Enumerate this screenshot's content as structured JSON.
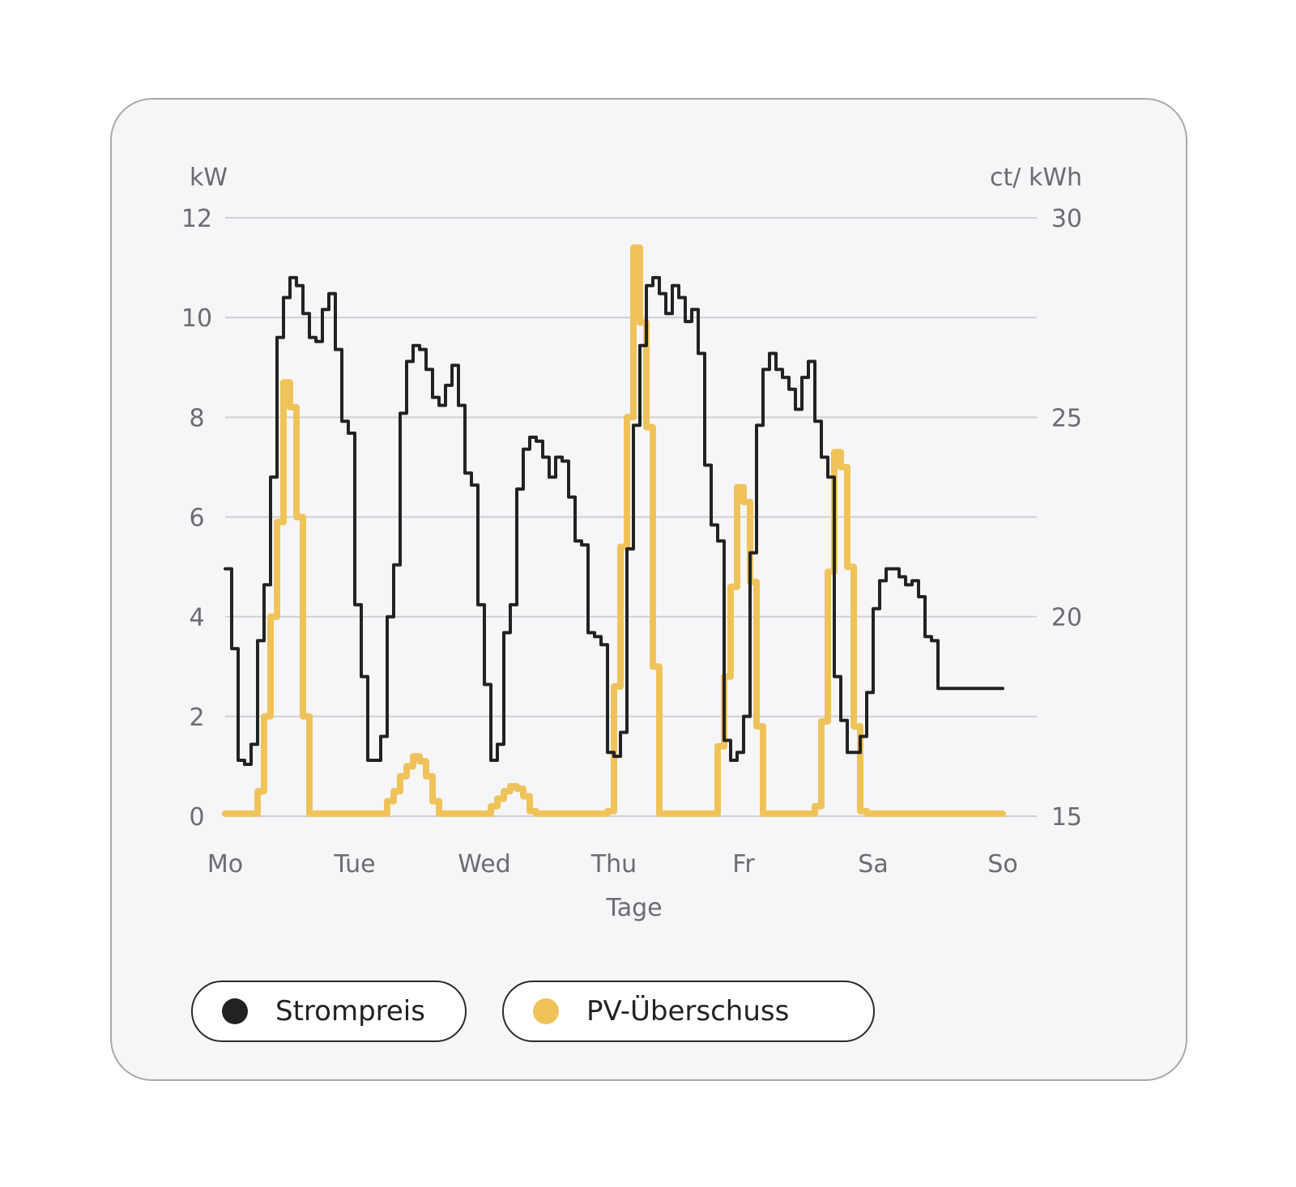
{
  "chart_data": {
    "type": "line",
    "xlabel": "Tage",
    "x_ticks": [
      "Mo",
      "Tue",
      "Wed",
      "Thu",
      "Fr",
      "Sa",
      "So"
    ],
    "y_left": {
      "unit": "kW",
      "ylim": [
        0,
        12
      ],
      "ticks": [
        "0",
        "2",
        "4",
        "6",
        "8",
        "10",
        "12"
      ]
    },
    "y_right": {
      "unit": "ct/ kWh",
      "ylim": [
        15,
        30
      ],
      "ticks": [
        "15",
        "20",
        "25",
        "30"
      ]
    },
    "grid": true,
    "legend_position": "bottom-left",
    "series": [
      {
        "name": "Strompreis",
        "color": "#222222",
        "axis": "right",
        "step": true,
        "x": [
          0,
          0.05,
          0.1,
          0.15,
          0.2,
          0.25,
          0.3,
          0.35,
          0.4,
          0.45,
          0.5,
          0.55,
          0.6,
          0.65,
          0.7,
          0.75,
          0.8,
          0.85,
          0.9,
          0.95,
          1.0,
          1.05,
          1.1,
          1.15,
          1.2,
          1.25,
          1.3,
          1.35,
          1.4,
          1.45,
          1.5,
          1.55,
          1.6,
          1.65,
          1.7,
          1.75,
          1.8,
          1.85,
          1.9,
          1.95,
          2.0,
          2.05,
          2.1,
          2.15,
          2.2,
          2.25,
          2.3,
          2.35,
          2.4,
          2.45,
          2.5,
          2.55,
          2.6,
          2.65,
          2.7,
          2.75,
          2.8,
          2.85,
          2.9,
          2.95,
          3.0,
          3.05,
          3.1,
          3.15,
          3.2,
          3.25,
          3.3,
          3.35,
          3.4,
          3.45,
          3.5,
          3.55,
          3.6,
          3.65,
          3.7,
          3.75,
          3.8,
          3.85,
          3.9,
          3.95,
          4.0,
          4.05,
          4.1,
          4.15,
          4.2,
          4.25,
          4.3,
          4.35,
          4.4,
          4.45,
          4.5,
          4.55,
          4.6,
          4.65,
          4.7,
          4.75,
          4.8,
          4.85,
          4.9,
          4.95,
          5.0,
          5.05,
          5.1,
          5.15,
          5.2,
          5.25,
          5.3,
          5.35,
          5.4,
          5.45,
          5.5,
          5.55,
          5.6,
          5.65,
          5.7,
          5.75,
          5.8,
          5.85,
          5.9,
          5.95,
          6.0
        ],
        "values": [
          21.2,
          19.2,
          16.4,
          16.3,
          16.8,
          19.4,
          20.8,
          23.5,
          27.0,
          28.0,
          28.5,
          28.3,
          27.6,
          27.0,
          26.9,
          27.7,
          28.1,
          26.7,
          24.9,
          24.6,
          20.3,
          18.5,
          16.4,
          16.4,
          17.0,
          20.0,
          21.3,
          25.1,
          26.4,
          26.8,
          26.7,
          26.2,
          25.5,
          25.3,
          25.8,
          26.3,
          25.3,
          23.6,
          23.3,
          20.3,
          18.3,
          16.4,
          16.8,
          19.6,
          20.3,
          23.2,
          24.2,
          24.5,
          24.4,
          24.0,
          23.5,
          24.0,
          23.9,
          23.0,
          21.9,
          21.8,
          19.6,
          19.5,
          19.3,
          16.6,
          16.5,
          17.1,
          21.7,
          24.8,
          26.8,
          28.3,
          28.5,
          28.1,
          27.6,
          28.3,
          28.0,
          27.4,
          27.7,
          26.6,
          23.8,
          22.3,
          21.9,
          16.9,
          16.4,
          16.6,
          17.5,
          21.6,
          24.8,
          26.2,
          26.6,
          26.2,
          26.0,
          25.7,
          25.2,
          26.0,
          26.4,
          24.9,
          24.0,
          23.5,
          18.5,
          17.4,
          16.6,
          16.6,
          17.0,
          18.1,
          20.2,
          20.9,
          21.2,
          21.2,
          21.0,
          20.8,
          20.9,
          20.5,
          19.5,
          19.4,
          18.2,
          18.2,
          18.2,
          18.2,
          18.2,
          18.2,
          18.2,
          18.2,
          18.2,
          18.2,
          18.2
        ]
      },
      {
        "name": "PV-Überschuss",
        "color": "#efc35a",
        "axis": "left",
        "step": true,
        "x": [
          0,
          0.05,
          0.1,
          0.15,
          0.2,
          0.25,
          0.3,
          0.35,
          0.4,
          0.45,
          0.5,
          0.55,
          0.6,
          0.65,
          0.7,
          0.75,
          0.8,
          0.85,
          0.9,
          0.95,
          1.0,
          1.05,
          1.1,
          1.15,
          1.2,
          1.25,
          1.3,
          1.35,
          1.4,
          1.45,
          1.5,
          1.55,
          1.6,
          1.65,
          1.7,
          1.75,
          1.8,
          1.85,
          1.9,
          1.95,
          2.0,
          2.05,
          2.1,
          2.15,
          2.2,
          2.25,
          2.3,
          2.35,
          2.4,
          2.45,
          2.5,
          2.55,
          2.6,
          2.65,
          2.7,
          2.75,
          2.8,
          2.85,
          2.9,
          2.95,
          3.0,
          3.05,
          3.1,
          3.15,
          3.2,
          3.25,
          3.3,
          3.35,
          3.4,
          3.45,
          3.5,
          3.55,
          3.6,
          3.65,
          3.7,
          3.75,
          3.8,
          3.85,
          3.9,
          3.95,
          4.0,
          4.05,
          4.1,
          4.15,
          4.2,
          4.25,
          4.3,
          4.35,
          4.4,
          4.45,
          4.5,
          4.55,
          4.6,
          4.65,
          4.7,
          4.75,
          4.8,
          4.85,
          4.9,
          4.95,
          5.0,
          5.05,
          5.1,
          5.15,
          5.2,
          5.25,
          5.3,
          5.35,
          5.4,
          5.45,
          5.5,
          5.55,
          5.6,
          5.65,
          5.7,
          5.75,
          5.8,
          5.85,
          5.9,
          5.95,
          6.0
        ],
        "values": [
          0.05,
          0.05,
          0.05,
          0.05,
          0.05,
          0.5,
          2.0,
          4.0,
          5.9,
          8.7,
          8.2,
          6.0,
          2.0,
          0.05,
          0.05,
          0.05,
          0.05,
          0.05,
          0.05,
          0.05,
          0.05,
          0.05,
          0.05,
          0.05,
          0.05,
          0.3,
          0.5,
          0.8,
          1.0,
          1.2,
          1.1,
          0.8,
          0.3,
          0.05,
          0.05,
          0.05,
          0.05,
          0.05,
          0.05,
          0.05,
          0.05,
          0.2,
          0.35,
          0.5,
          0.6,
          0.55,
          0.4,
          0.1,
          0.05,
          0.05,
          0.05,
          0.05,
          0.05,
          0.05,
          0.05,
          0.05,
          0.05,
          0.05,
          0.05,
          0.1,
          2.6,
          5.4,
          8.0,
          11.4,
          9.9,
          7.8,
          3.0,
          0.05,
          0.05,
          0.05,
          0.05,
          0.05,
          0.05,
          0.05,
          0.05,
          0.05,
          1.4,
          2.8,
          4.6,
          6.6,
          6.3,
          4.7,
          1.8,
          0.05,
          0.05,
          0.05,
          0.05,
          0.05,
          0.05,
          0.05,
          0.05,
          0.2,
          1.9,
          4.9,
          7.3,
          7.0,
          5.0,
          1.8,
          0.1,
          0.05,
          0.05,
          0.05,
          0.05,
          0.05,
          0.05,
          0.05,
          0.05,
          0.05,
          0.05,
          0.05,
          0.05,
          0.05,
          0.05,
          0.05,
          0.05,
          0.05,
          0.05,
          0.05,
          0.05,
          0.05,
          0.05
        ]
      }
    ]
  },
  "legend": {
    "strompreis_label": "Strompreis",
    "pv_label": "PV-Überschuss",
    "strompreis_color": "#222222",
    "pv_color": "#efc35a"
  }
}
